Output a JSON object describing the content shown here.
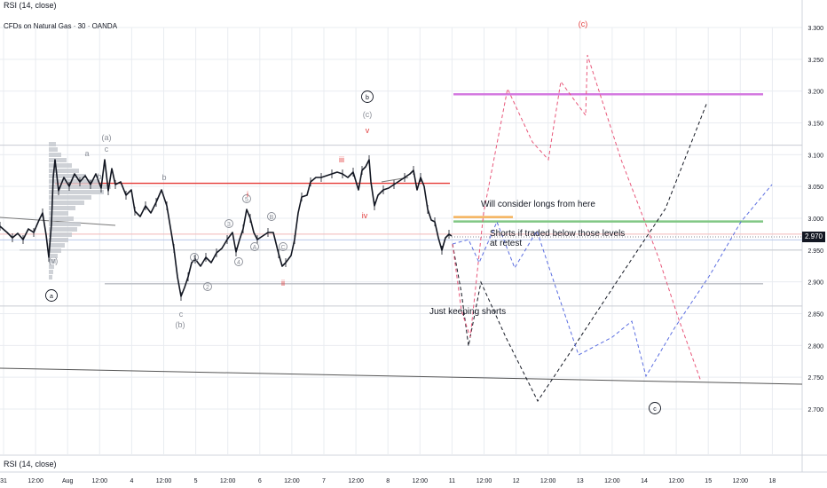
{
  "header": {
    "indicator_top": "RSI (14, close)",
    "symbol": "CFDs on Natural Gas · 30 · OANDA",
    "indicator_bottom": "RSI (14, close)"
  },
  "price_tag": "2.970",
  "annotations": {
    "longs": "Will consider longs from here",
    "shorts_line1": "Shorts if traded below those levels",
    "shorts_line2": "at retest",
    "keeping": "Just keeping shorts"
  },
  "colors": {
    "grid": "#e9ecf1",
    "text": "#131722",
    "resistance_red": "#e53935",
    "magenta_level": "#d47ae0",
    "green_level": "#81c784",
    "orange_level": "#f5b35c",
    "wave_red": "#e23d3d",
    "path_blue": "#5b6ee1",
    "path_pink": "#e8577a",
    "path_black": "#131722",
    "gray": "#8a8e97"
  },
  "chart_data": {
    "type": "line",
    "y_range": [
      2.68,
      3.32
    ],
    "y_ticks": [
      "3.300",
      "3.250",
      "3.200",
      "3.150",
      "3.100",
      "3.050",
      "3.000",
      "2.950",
      "2.900",
      "2.850",
      "2.800",
      "2.750",
      "2.700"
    ],
    "x_ticks": [
      "31",
      "12:00",
      "Aug",
      "12:00",
      "4",
      "12:00",
      "5",
      "12:00",
      "6",
      "12:00",
      "7",
      "12:00",
      "8",
      "12:00",
      "11",
      "12:00",
      "12",
      "12:00",
      "13",
      "12:00",
      "14",
      "12:00",
      "15",
      "12:00",
      "18"
    ],
    "last_price": 2.97,
    "levels": [
      {
        "name": "resistance",
        "y": 3.055,
        "color": "resistance_red"
      },
      {
        "name": "upper-target",
        "y": 3.195,
        "color": "magenta_level"
      },
      {
        "name": "shorts-level",
        "y": 2.995,
        "color": "green_level"
      },
      {
        "name": "longs-level",
        "y": 3.002,
        "color": "orange_level"
      },
      {
        "name": "support",
        "y": 2.897,
        "color": "gray"
      }
    ],
    "wave_labels": [
      {
        "text": "(a)",
        "color": "gray"
      },
      {
        "text": "a",
        "color": "gray"
      },
      {
        "text": "b",
        "color": "gray"
      },
      {
        "text": "c",
        "color": "gray"
      },
      {
        "text": "(v)",
        "color": "gray"
      },
      {
        "text": "a",
        "color": "gray",
        "circled": true
      },
      {
        "text": "b",
        "color": "gray"
      },
      {
        "text": "c",
        "color": "gray"
      },
      {
        "text": "(b)",
        "color": "gray"
      },
      {
        "text": "1",
        "color": "gray",
        "circled": true
      },
      {
        "text": "2",
        "color": "gray",
        "circled": true
      },
      {
        "text": "3",
        "color": "gray",
        "circled": true
      },
      {
        "text": "4",
        "color": "gray",
        "circled": true
      },
      {
        "text": "5",
        "color": "gray",
        "circled": true
      },
      {
        "text": "A",
        "color": "gray",
        "circled": true
      },
      {
        "text": "B",
        "color": "gray",
        "circled": true
      },
      {
        "text": "C",
        "color": "gray",
        "circled": true
      },
      {
        "text": "i",
        "color": "wave_red"
      },
      {
        "text": "ii",
        "color": "wave_red"
      },
      {
        "text": "iii",
        "color": "wave_red"
      },
      {
        "text": "iv",
        "color": "wave_red"
      },
      {
        "text": "v",
        "color": "wave_red"
      },
      {
        "text": "b",
        "color": "text",
        "circled": true
      },
      {
        "text": "(c)",
        "color": "gray"
      },
      {
        "text": "(c)",
        "color": "wave_red"
      },
      {
        "text": "c",
        "color": "text",
        "circled": true
      }
    ],
    "grid": true
  }
}
